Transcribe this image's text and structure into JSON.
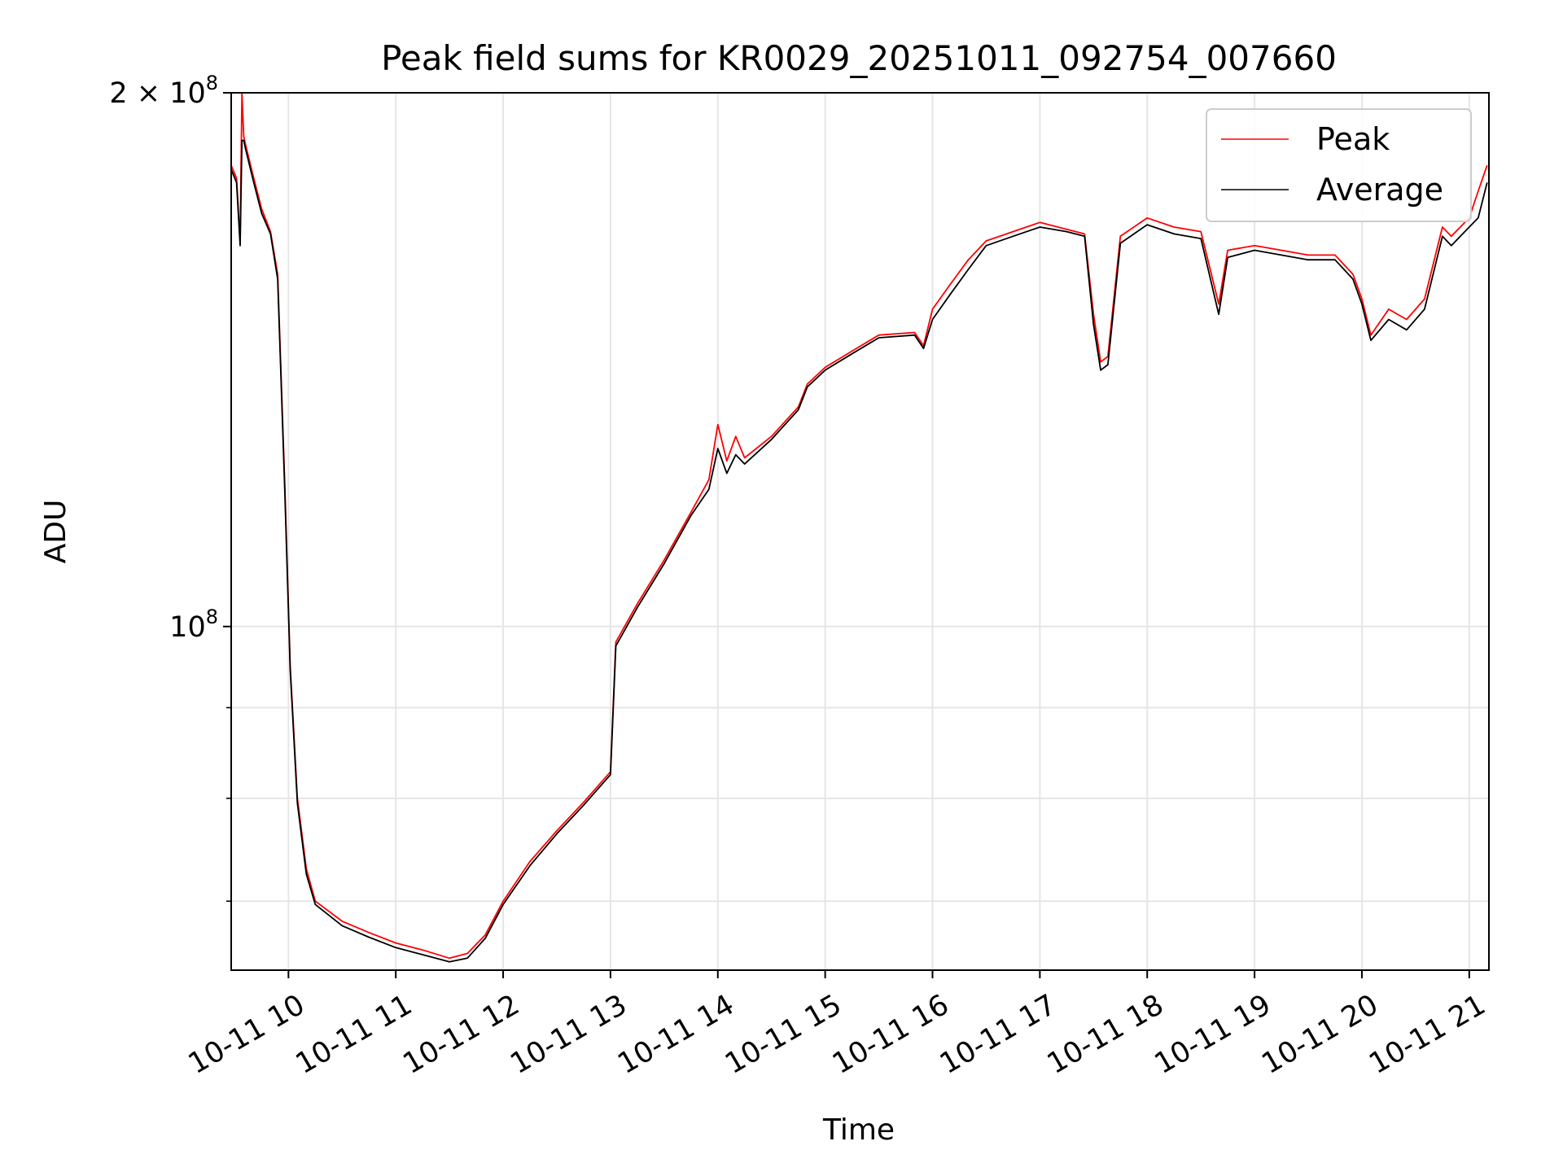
{
  "chart_data": {
    "type": "line",
    "title": "Peak field sums for KR0029_20251011_092754_007660",
    "xlabel": "Time",
    "ylabel": "ADU",
    "yscale": "log",
    "grid": true,
    "legend_position": "top-right",
    "xlim": [
      "2025-10-11 09:28",
      "2025-10-11 21:11"
    ],
    "ylim": [
      64000000,
      200000000
    ],
    "x_ticks": [
      "10-11 10",
      "10-11 11",
      "10-11 12",
      "10-11 13",
      "10-11 14",
      "10-11 15",
      "10-11 16",
      "10-11 17",
      "10-11 18",
      "10-11 19",
      "10-11 20",
      "10-11 21"
    ],
    "y_ticks": [
      {
        "value": 200000000,
        "base": "2 × 10",
        "exp": "8"
      },
      {
        "value": 100000000,
        "base": "10",
        "exp": "8"
      }
    ],
    "y_minor_ticks": [
      60000000,
      70000000,
      80000000,
      90000000
    ],
    "series": [
      {
        "name": "Peak",
        "color": "#ff0000",
        "x": [
          "2025-10-11 09:28",
          "2025-10-11 09:31",
          "2025-10-11 09:33",
          "2025-10-11 09:34",
          "2025-10-11 09:35",
          "2025-10-11 09:36",
          "2025-10-11 09:40",
          "2025-10-11 09:45",
          "2025-10-11 09:50",
          "2025-10-11 09:54",
          "2025-10-11 09:58",
          "2025-10-11 10:01",
          "2025-10-11 10:05",
          "2025-10-11 10:10",
          "2025-10-11 10:15",
          "2025-10-11 10:30",
          "2025-10-11 10:45",
          "2025-10-11 11:00",
          "2025-10-11 11:15",
          "2025-10-11 11:30",
          "2025-10-11 11:40",
          "2025-10-11 11:50",
          "2025-10-11 12:00",
          "2025-10-11 12:15",
          "2025-10-11 12:30",
          "2025-10-11 12:45",
          "2025-10-11 13:00",
          "2025-10-11 13:03",
          "2025-10-11 13:15",
          "2025-10-11 13:30",
          "2025-10-11 13:45",
          "2025-10-11 13:55",
          "2025-10-11 14:00",
          "2025-10-11 14:05",
          "2025-10-11 14:10",
          "2025-10-11 14:15",
          "2025-10-11 14:30",
          "2025-10-11 14:45",
          "2025-10-11 14:50",
          "2025-10-11 15:00",
          "2025-10-11 15:15",
          "2025-10-11 15:30",
          "2025-10-11 15:50",
          "2025-10-11 15:55",
          "2025-10-11 16:00",
          "2025-10-11 16:10",
          "2025-10-11 16:20",
          "2025-10-11 16:30",
          "2025-10-11 16:45",
          "2025-10-11 17:00",
          "2025-10-11 17:15",
          "2025-10-11 17:25",
          "2025-10-11 17:30",
          "2025-10-11 17:34",
          "2025-10-11 17:38",
          "2025-10-11 17:45",
          "2025-10-11 18:00",
          "2025-10-11 18:15",
          "2025-10-11 18:30",
          "2025-10-11 18:40",
          "2025-10-11 18:45",
          "2025-10-11 19:00",
          "2025-10-11 19:15",
          "2025-10-11 19:30",
          "2025-10-11 19:45",
          "2025-10-11 19:55",
          "2025-10-11 20:00",
          "2025-10-11 20:05",
          "2025-10-11 20:15",
          "2025-10-11 20:25",
          "2025-10-11 20:35",
          "2025-10-11 20:45",
          "2025-10-11 20:50",
          "2025-10-11 21:00",
          "2025-10-11 21:05",
          "2025-10-11 21:10"
        ],
        "y": [
          182000000,
          179000000,
          165000000,
          200000000,
          189000000,
          187000000,
          180000000,
          172000000,
          167000000,
          158000000,
          120000000,
          95000000,
          80000000,
          73000000,
          70000000,
          68200000,
          67200000,
          66300000,
          65700000,
          65000000,
          65400000,
          67000000,
          70000000,
          73700000,
          76700000,
          79600000,
          82800000,
          98000000,
          103000000,
          109000000,
          116000000,
          121000000,
          130000000,
          124000000,
          128000000,
          124500000,
          128000000,
          133000000,
          137000000,
          140000000,
          143000000,
          146000000,
          146500000,
          144000000,
          151000000,
          156000000,
          161000000,
          165000000,
          167000000,
          169000000,
          167500000,
          166500000,
          150000000,
          141000000,
          142000000,
          166000000,
          170000000,
          168000000,
          167000000,
          152000000,
          163000000,
          164000000,
          163000000,
          162000000,
          162000000,
          158000000,
          153000000,
          146000000,
          151000000,
          149000000,
          153000000,
          168000000,
          166000000,
          170000000,
          176000000,
          182000000
        ]
      },
      {
        "name": "Average",
        "color": "#000000",
        "x": [
          "2025-10-11 09:28",
          "2025-10-11 09:31",
          "2025-10-11 09:33",
          "2025-10-11 09:34",
          "2025-10-11 09:35",
          "2025-10-11 09:36",
          "2025-10-11 09:40",
          "2025-10-11 09:45",
          "2025-10-11 09:50",
          "2025-10-11 09:54",
          "2025-10-11 09:58",
          "2025-10-11 10:01",
          "2025-10-11 10:05",
          "2025-10-11 10:10",
          "2025-10-11 10:15",
          "2025-10-11 10:30",
          "2025-10-11 10:45",
          "2025-10-11 11:00",
          "2025-10-11 11:15",
          "2025-10-11 11:30",
          "2025-10-11 11:40",
          "2025-10-11 11:50",
          "2025-10-11 12:00",
          "2025-10-11 12:15",
          "2025-10-11 12:30",
          "2025-10-11 12:45",
          "2025-10-11 13:00",
          "2025-10-11 13:03",
          "2025-10-11 13:15",
          "2025-10-11 13:30",
          "2025-10-11 13:45",
          "2025-10-11 13:55",
          "2025-10-11 14:00",
          "2025-10-11 14:05",
          "2025-10-11 14:10",
          "2025-10-11 14:15",
          "2025-10-11 14:30",
          "2025-10-11 14:45",
          "2025-10-11 14:50",
          "2025-10-11 15:00",
          "2025-10-11 15:15",
          "2025-10-11 15:30",
          "2025-10-11 15:50",
          "2025-10-11 15:55",
          "2025-10-11 16:00",
          "2025-10-11 16:10",
          "2025-10-11 16:20",
          "2025-10-11 16:30",
          "2025-10-11 16:45",
          "2025-10-11 17:00",
          "2025-10-11 17:15",
          "2025-10-11 17:25",
          "2025-10-11 17:30",
          "2025-10-11 17:34",
          "2025-10-11 17:38",
          "2025-10-11 17:45",
          "2025-10-11 18:00",
          "2025-10-11 18:15",
          "2025-10-11 18:30",
          "2025-10-11 18:40",
          "2025-10-11 18:45",
          "2025-10-11 19:00",
          "2025-10-11 19:15",
          "2025-10-11 19:30",
          "2025-10-11 19:45",
          "2025-10-11 19:55",
          "2025-10-11 20:00",
          "2025-10-11 20:05",
          "2025-10-11 20:15",
          "2025-10-11 20:25",
          "2025-10-11 20:35",
          "2025-10-11 20:45",
          "2025-10-11 20:50",
          "2025-10-11 21:00",
          "2025-10-11 21:05",
          "2025-10-11 21:10"
        ],
        "y": [
          181000000,
          178000000,
          164000000,
          188000000,
          188000000,
          186000000,
          179000000,
          171000000,
          166500000,
          157000000,
          119000000,
          94500000,
          79500000,
          72500000,
          69700000,
          67800000,
          66800000,
          65900000,
          65300000,
          64700000,
          65000000,
          66700000,
          69700000,
          73300000,
          76400000,
          79300000,
          82500000,
          97500000,
          102500000,
          108500000,
          115500000,
          119500000,
          126000000,
          122000000,
          125000000,
          123500000,
          127500000,
          132500000,
          136500000,
          139500000,
          142500000,
          145500000,
          146000000,
          143500000,
          149000000,
          154000000,
          159000000,
          164000000,
          166000000,
          168000000,
          167000000,
          166000000,
          148000000,
          139500000,
          140500000,
          164500000,
          168500000,
          166500000,
          165500000,
          150000000,
          161500000,
          163000000,
          162000000,
          161000000,
          161000000,
          157000000,
          152000000,
          145000000,
          149000000,
          147000000,
          151000000,
          166000000,
          164000000,
          168000000,
          170000000,
          178000000
        ]
      }
    ]
  }
}
